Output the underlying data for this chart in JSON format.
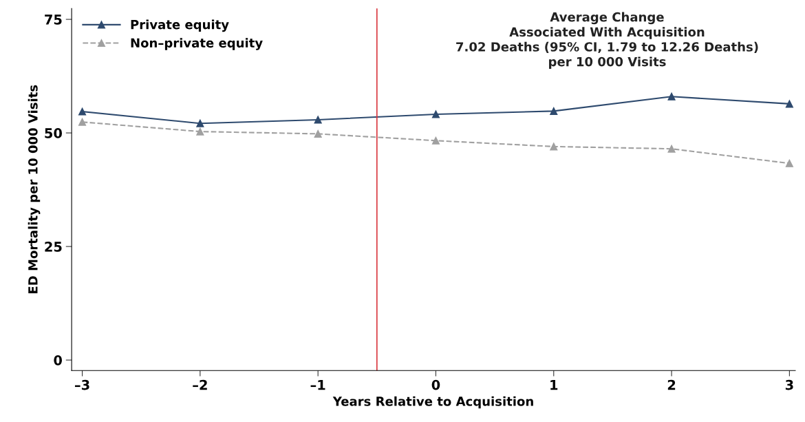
{
  "chart_data": {
    "type": "line",
    "xlabel": "Years Relative to Acquisition",
    "ylabel": "ED Mortality per 10 000 Visits",
    "x": [
      -3,
      -2,
      -1,
      0,
      1,
      2,
      3
    ],
    "series": [
      {
        "name": "Private equity",
        "color": "#2e4a6e",
        "values": [
          54.7,
          52.1,
          52.9,
          54.1,
          54.8,
          58.0,
          56.4
        ],
        "line_style": "solid"
      },
      {
        "name": "Non–private equity",
        "color": "#a0a0a0",
        "values": [
          52.4,
          50.3,
          49.8,
          48.3,
          47.0,
          46.5,
          43.3
        ],
        "line_style": "dashed"
      }
    ],
    "xlim": [
      -3.09,
      3.05
    ],
    "ylim": [
      -2.3,
      77.4
    ],
    "xticks": [
      {
        "value": -3,
        "label": "–3"
      },
      {
        "value": -2,
        "label": "–2"
      },
      {
        "value": -1,
        "label": "–1"
      },
      0,
      1,
      2,
      3
    ],
    "yticks": [
      0,
      25,
      50,
      75
    ],
    "ref_lines": [
      {
        "axis": "x",
        "value": -0.5,
        "color": "#d9363e"
      }
    ],
    "annotations": [
      "Average Change\nAssociated With Acquisition\n7.02 Deaths (95% CI, 1.79 to 12.26 Deaths)\nper 10 000 Visits"
    ],
    "marker": "triangle",
    "grid": false,
    "legend": "top left"
  }
}
